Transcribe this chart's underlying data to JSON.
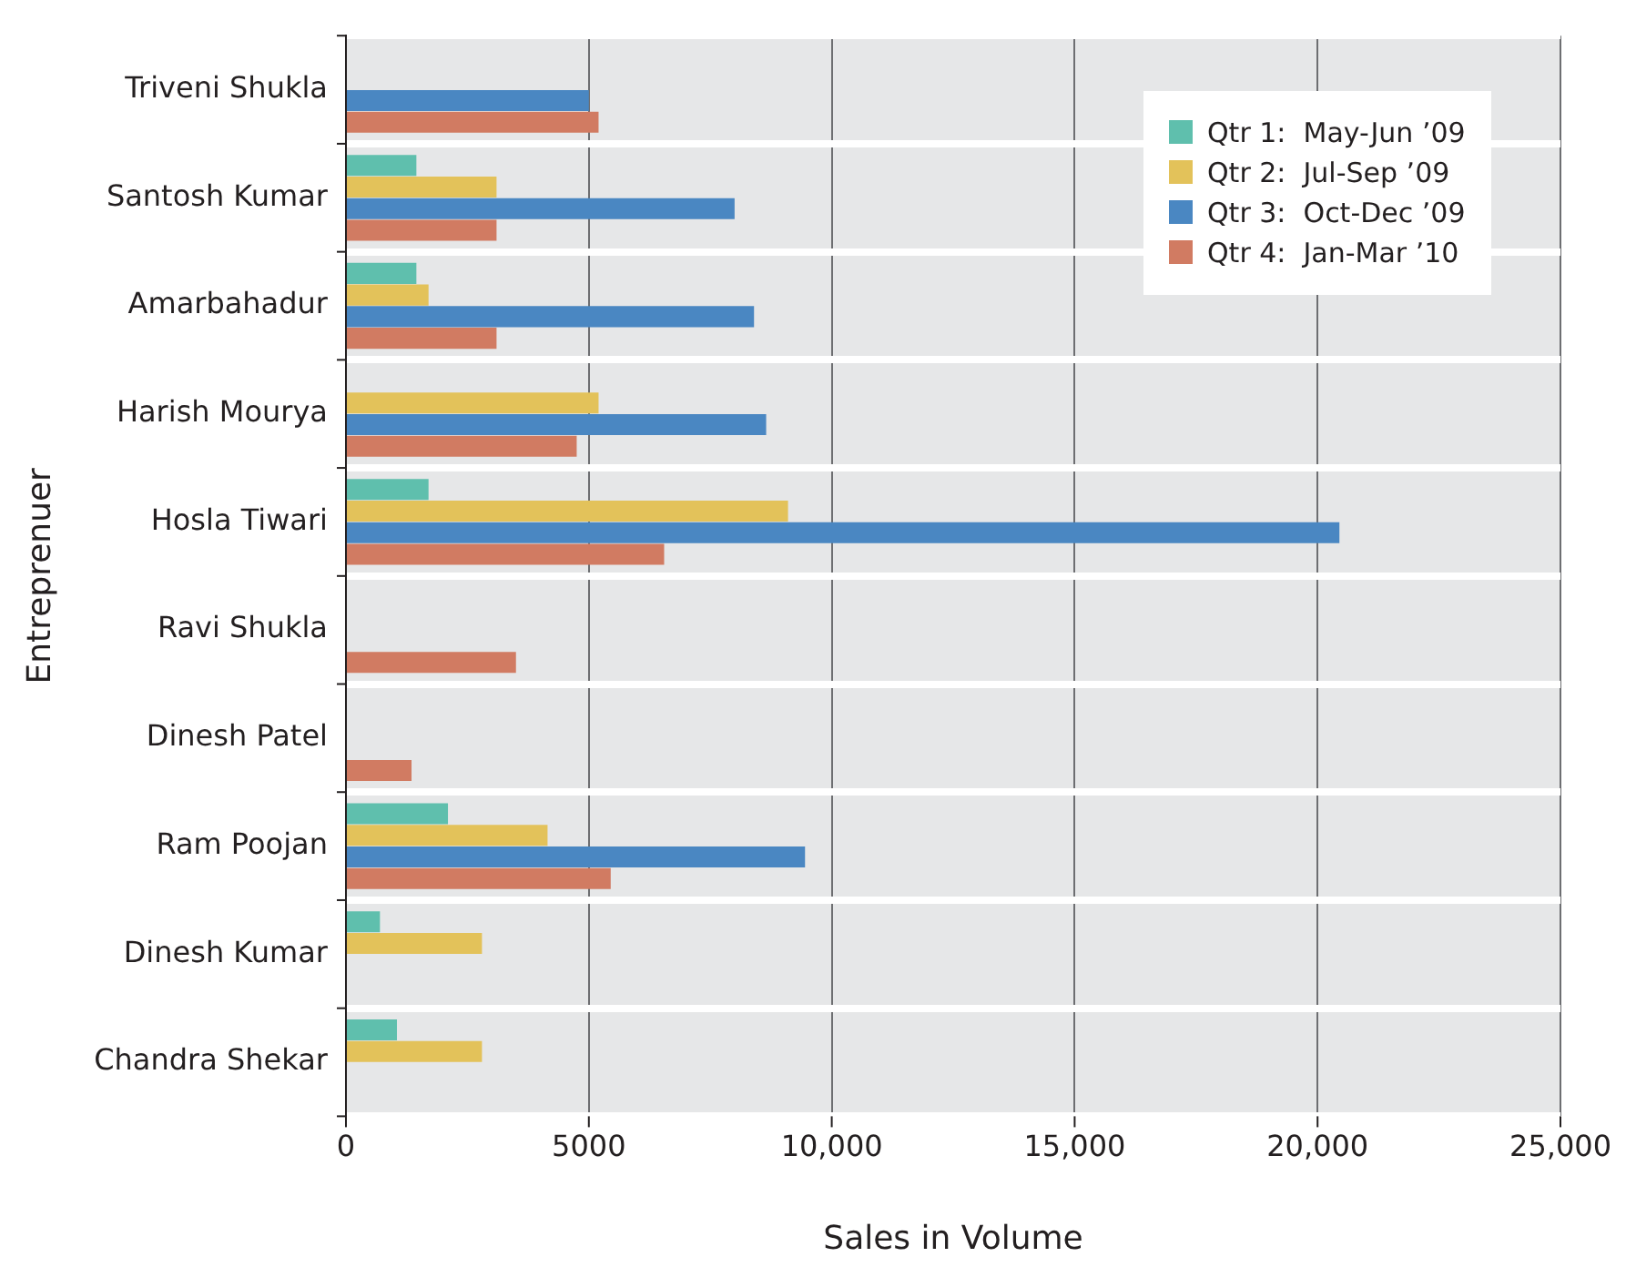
{
  "chart_data": {
    "type": "bar",
    "orientation": "horizontal",
    "xlabel": "Sales in Volume",
    "ylabel": "Entreprenuer",
    "categories": [
      "Triveni Shukla",
      "Santosh Kumar",
      "Amarbahadur",
      "Harish Mourya",
      "Hosla Tiwari",
      "Ravi Shukla",
      "Dinesh Patel",
      "Ram Poojan",
      "Dinesh Kumar",
      "Chandra Shekar"
    ],
    "series": [
      {
        "name": "Qtr 1:  May-Jun ’09",
        "color": "#5fbfad",
        "values": [
          null,
          1450,
          1450,
          null,
          1700,
          null,
          null,
          2100,
          700,
          1050
        ]
      },
      {
        "name": "Qtr 2:  Jul-Sep ’09",
        "color": "#e3c25a",
        "values": [
          null,
          3100,
          1700,
          5200,
          9100,
          null,
          null,
          4150,
          2800,
          2800
        ]
      },
      {
        "name": "Qtr 3:  Oct-Dec ’09",
        "color": "#4a87c2",
        "values": [
          5000,
          8000,
          8400,
          8650,
          20450,
          null,
          null,
          9450,
          null,
          null
        ]
      },
      {
        "name": "Qtr 4:  Jan-Mar ’10",
        "color": "#d17b62",
        "values": [
          5200,
          3100,
          3100,
          4750,
          6550,
          3500,
          1350,
          5450,
          null,
          null
        ]
      }
    ],
    "xlim": [
      0,
      25000
    ],
    "xticks": [
      0,
      5000,
      {
        "value": 10000,
        "label": "10,000"
      },
      {
        "value": 15000,
        "label": "15,000"
      },
      {
        "value": 20000,
        "label": "20,000"
      },
      {
        "value": 25000,
        "label": "25,000"
      }
    ],
    "grid": true,
    "legend": "top right"
  }
}
